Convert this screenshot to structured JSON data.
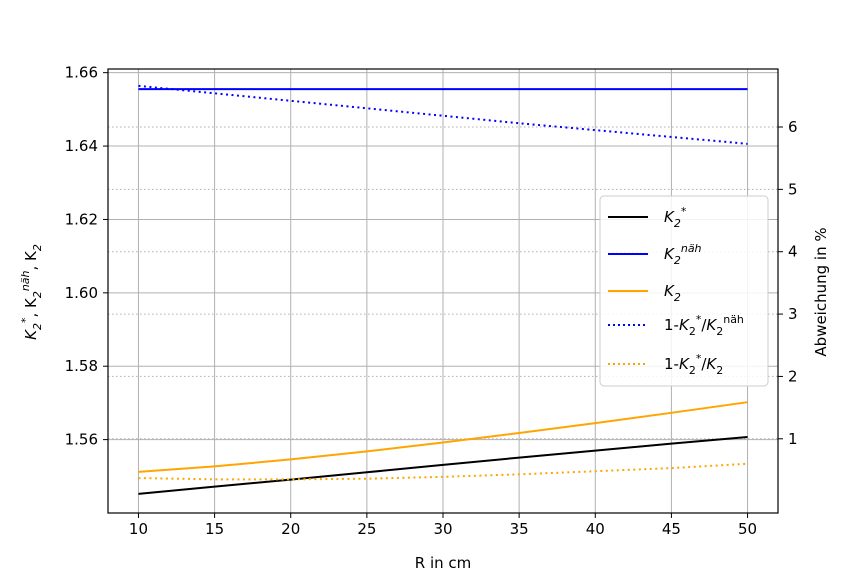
{
  "chart_data": {
    "type": "line",
    "xlabel": "R in cm",
    "ylabel_left": "K2*, K2^näh, K2",
    "ylabel_right": "Abweichung in %",
    "xlim": [
      8,
      52
    ],
    "ylim_left": [
      1.54,
      1.661
    ],
    "ylim_right": [
      -0.19,
      6.93
    ],
    "x_ticks": [
      "10",
      "15",
      "20",
      "25",
      "30",
      "35",
      "40",
      "45",
      "50"
    ],
    "y_left_ticks": [
      "1.56",
      "1.58",
      "1.60",
      "1.62",
      "1.64",
      "1.66"
    ],
    "y_right_ticks": [
      "1",
      "2",
      "3",
      "4",
      "5",
      "6"
    ],
    "grid": true,
    "legend_position": "center-right",
    "x": [
      10,
      15,
      20,
      25,
      30,
      35,
      40,
      45,
      50
    ],
    "series": [
      {
        "name": "K2*",
        "axis": "left",
        "style": "solid",
        "color": "#000000",
        "values": [
          1.5452,
          1.5472,
          1.5491,
          1.5511,
          1.5531,
          1.5551,
          1.557,
          1.5589,
          1.5607
        ]
      },
      {
        "name": "K2^näh",
        "axis": "left",
        "style": "solid",
        "color": "#0000ff",
        "values": [
          1.6555,
          1.6555,
          1.6555,
          1.6555,
          1.6555,
          1.6555,
          1.6555,
          1.6555,
          1.6555
        ]
      },
      {
        "name": "K2",
        "axis": "left",
        "style": "solid",
        "color": "#ffa500",
        "values": [
          1.5512,
          1.5527,
          1.5546,
          1.5568,
          1.5592,
          1.5618,
          1.5645,
          1.5673,
          1.5702
        ]
      },
      {
        "name": "1-K2*/K2^näh",
        "axis": "right",
        "style": "dotted",
        "color": "#0000ff",
        "values": [
          6.66,
          6.54,
          6.42,
          6.3,
          6.18,
          6.06,
          5.95,
          5.84,
          5.73
        ]
      },
      {
        "name": "1-K2*/K2",
        "axis": "right",
        "style": "dotted",
        "color": "#ffa500",
        "values": [
          0.37,
          0.35,
          0.35,
          0.36,
          0.39,
          0.43,
          0.48,
          0.53,
          0.6
        ]
      }
    ]
  }
}
